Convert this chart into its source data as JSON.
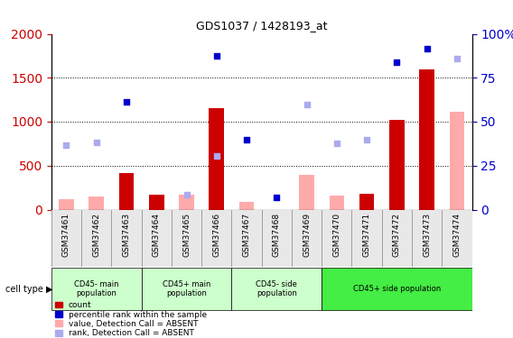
{
  "title": "GDS1037 / 1428193_at",
  "samples": [
    "GSM37461",
    "GSM37462",
    "GSM37463",
    "GSM37464",
    "GSM37465",
    "GSM37466",
    "GSM37467",
    "GSM37468",
    "GSM37469",
    "GSM37470",
    "GSM37471",
    "GSM37472",
    "GSM37473",
    "GSM37474"
  ],
  "count_values": [
    null,
    null,
    420,
    165,
    null,
    1150,
    null,
    null,
    null,
    null,
    175,
    1020,
    1590,
    null
  ],
  "percentile_values": [
    null,
    null,
    1230,
    null,
    null,
    1750,
    790,
    135,
    null,
    null,
    null,
    1680,
    1830,
    null
  ],
  "value_absent": [
    120,
    145,
    null,
    null,
    165,
    85,
    85,
    null,
    400,
    155,
    null,
    null,
    null,
    1110
  ],
  "rank_absent": [
    730,
    760,
    null,
    null,
    170,
    615,
    null,
    null,
    1200,
    755,
    790,
    null,
    null,
    1720
  ],
  "ylim_left": [
    0,
    2000
  ],
  "ylim_right": [
    0,
    100
  ],
  "yticks_left": [
    0,
    500,
    1000,
    1500,
    2000
  ],
  "yticks_right": [
    0,
    25,
    50,
    75,
    100
  ],
  "bar_width": 0.5,
  "count_color": "#cc0000",
  "percentile_color": "#0000cc",
  "value_absent_color": "#ffaaaa",
  "rank_absent_color": "#aaaaee",
  "bg_color": "#ffffff",
  "plot_bg": "#ffffff",
  "grid_color": "#000000",
  "left_label_color": "#cc0000",
  "right_label_color": "#0000cc",
  "group_configs": [
    {
      "label": "CD45- main\npopulation",
      "indices": [
        0,
        1,
        2
      ],
      "color": "#ccffcc"
    },
    {
      "label": "CD45+ main\npopulation",
      "indices": [
        3,
        4,
        5
      ],
      "color": "#ccffcc"
    },
    {
      "label": "CD45- side\npopulation",
      "indices": [
        6,
        7,
        8
      ],
      "color": "#ccffcc"
    },
    {
      "label": "CD45+ side population",
      "indices": [
        9,
        10,
        11,
        12,
        13
      ],
      "color": "#44ee44"
    }
  ]
}
